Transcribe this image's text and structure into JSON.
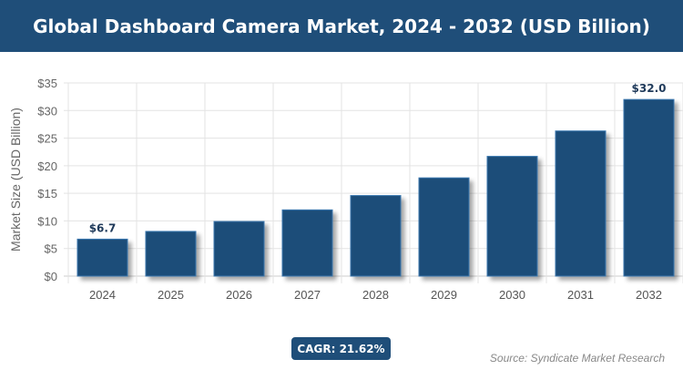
{
  "header": {
    "title": "Global Dashboard Camera Market, 2024 - 2032 (USD Billion)"
  },
  "footer": {
    "cagr": "CAGR: 21.62%",
    "source": "Source: Syndicate Market Research"
  },
  "chart_data": {
    "type": "bar",
    "title": "Global Dashboard Camera Market, 2024 - 2032 (USD Billion)",
    "xlabel": "",
    "ylabel": "Market Size (USD Billion)",
    "categories": [
      "2024",
      "2025",
      "2026",
      "2027",
      "2028",
      "2029",
      "2030",
      "2031",
      "2032"
    ],
    "values": [
      6.7,
      8.1,
      9.9,
      12.0,
      14.6,
      17.8,
      21.7,
      26.3,
      32.0
    ],
    "data_labels": {
      "2024": "$6.7",
      "2032": "$32.0"
    },
    "ylim": [
      0,
      35
    ],
    "yticks": [
      "$0",
      "$5",
      "$10",
      "$15",
      "$20",
      "$25",
      "$30",
      "$35"
    ],
    "grid": true,
    "bar_color": "#1f4e79"
  }
}
